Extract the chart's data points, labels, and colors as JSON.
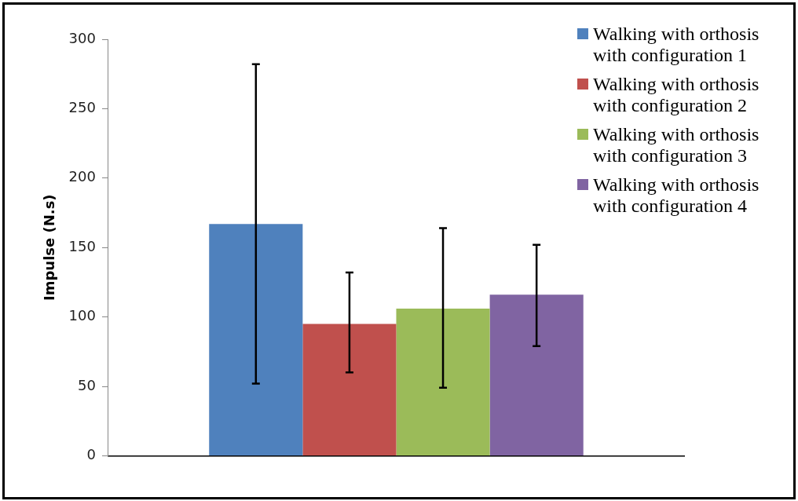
{
  "chart_data": {
    "type": "bar",
    "ylabel": "Impulse (N.s)",
    "categories": [
      null
    ],
    "series": [
      {
        "name": "Walking with orthosis with configuration 1",
        "color": "#4f81bd",
        "values": [
          167
        ],
        "errors": [
          [
            52,
            282
          ]
        ]
      },
      {
        "name": "Walking with orthosis with configuration 2",
        "color": "#c0504d",
        "values": [
          95
        ],
        "errors": [
          [
            60,
            132
          ]
        ]
      },
      {
        "name": "Walking with orthosis with configuration 3",
        "color": "#9bbb59",
        "values": [
          106
        ],
        "errors": [
          [
            49,
            164
          ]
        ]
      },
      {
        "name": "Walking with orthosis with configuration 4",
        "color": "#8064a2",
        "values": [
          116
        ],
        "errors": [
          [
            79,
            152
          ]
        ]
      }
    ],
    "ylim": [
      0,
      300
    ],
    "yticks": [
      0,
      50,
      100,
      150,
      200,
      250,
      300
    ],
    "grid": false,
    "legend": "right"
  }
}
